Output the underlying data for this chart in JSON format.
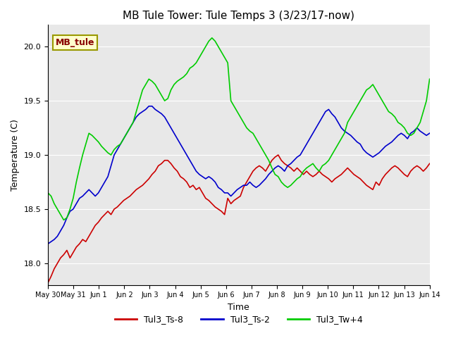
{
  "title": "MB Tule Tower: Tule Temps 3 (3/23/17-now)",
  "xlabel": "Time",
  "ylabel": "Temperature (C)",
  "background_color": "#e8e8e8",
  "ylim": [
    17.8,
    20.2
  ],
  "legend_label": "MB_tule",
  "legend_bg": "#ffffcc",
  "legend_border": "#999900",
  "series": [
    {
      "name": "Tul3_Ts-8",
      "color": "#cc0000"
    },
    {
      "name": "Tul3_Ts-2",
      "color": "#0000cc"
    },
    {
      "name": "Tul3_Tw+4",
      "color": "#00cc00"
    }
  ],
  "xtick_labels": [
    "May 30",
    "May 31",
    "Jun 1",
    "Jun 2",
    "Jun 3",
    "Jun 4",
    "Jun 5",
    "Jun 6",
    "Jun 7",
    "Jun 8",
    "Jun 9",
    "Jun 10",
    "Jun 11",
    "Jun 12",
    "Jun 13",
    "Jun 14"
  ],
  "xtick_positions": [
    0,
    1,
    2,
    3,
    4,
    5,
    6,
    7,
    8,
    9,
    10,
    11,
    12,
    13,
    14,
    15
  ],
  "red_data": [
    17.82,
    17.88,
    17.95,
    18.0,
    18.05,
    18.08,
    18.12,
    18.05,
    18.1,
    18.15,
    18.18,
    18.22,
    18.2,
    18.25,
    18.3,
    18.35,
    18.38,
    18.42,
    18.45,
    18.48,
    18.45,
    18.5,
    18.52,
    18.55,
    18.58,
    18.6,
    18.62,
    18.65,
    18.68,
    18.7,
    18.72,
    18.75,
    18.78,
    18.82,
    18.85,
    18.9,
    18.92,
    18.95,
    18.95,
    18.92,
    18.88,
    18.85,
    18.8,
    18.78,
    18.75,
    18.7,
    18.72,
    18.68,
    18.7,
    18.65,
    18.6,
    18.58,
    18.55,
    18.52,
    18.5,
    18.48,
    18.45,
    18.6,
    18.55,
    18.58,
    18.6,
    18.62,
    18.7,
    18.75,
    18.8,
    18.85,
    18.88,
    18.9,
    18.88,
    18.85,
    18.9,
    18.95,
    18.98,
    19.0,
    18.95,
    18.92,
    18.9,
    18.88,
    18.85,
    18.88,
    18.85,
    18.82,
    18.85,
    18.82,
    18.8,
    18.82,
    18.85,
    18.82,
    18.8,
    18.78,
    18.75,
    18.78,
    18.8,
    18.82,
    18.85,
    18.88,
    18.85,
    18.82,
    18.8,
    18.78,
    18.75,
    18.72,
    18.7,
    18.68,
    18.75,
    18.72,
    18.78,
    18.82,
    18.85,
    18.88,
    18.9,
    18.88,
    18.85,
    18.82,
    18.8,
    18.85,
    18.88,
    18.9,
    18.88,
    18.85,
    18.88,
    18.92
  ],
  "blue_data": [
    18.18,
    18.2,
    18.22,
    18.25,
    18.3,
    18.35,
    18.42,
    18.48,
    18.5,
    18.55,
    18.6,
    18.62,
    18.65,
    18.68,
    18.65,
    18.62,
    18.65,
    18.7,
    18.75,
    18.8,
    18.9,
    19.0,
    19.05,
    19.1,
    19.15,
    19.2,
    19.25,
    19.3,
    19.35,
    19.38,
    19.4,
    19.42,
    19.45,
    19.45,
    19.42,
    19.4,
    19.38,
    19.35,
    19.3,
    19.25,
    19.2,
    19.15,
    19.1,
    19.05,
    19.0,
    18.95,
    18.9,
    18.85,
    18.82,
    18.8,
    18.78,
    18.8,
    18.78,
    18.75,
    18.7,
    18.68,
    18.65,
    18.65,
    18.62,
    18.65,
    18.68,
    18.7,
    18.72,
    18.72,
    18.75,
    18.72,
    18.7,
    18.72,
    18.75,
    18.78,
    18.82,
    18.85,
    18.88,
    18.9,
    18.88,
    18.85,
    18.9,
    18.92,
    18.95,
    18.98,
    19.0,
    19.05,
    19.1,
    19.15,
    19.2,
    19.25,
    19.3,
    19.35,
    19.4,
    19.42,
    19.38,
    19.35,
    19.3,
    19.25,
    19.22,
    19.2,
    19.18,
    19.15,
    19.12,
    19.1,
    19.05,
    19.02,
    19.0,
    18.98,
    19.0,
    19.02,
    19.05,
    19.08,
    19.1,
    19.12,
    19.15,
    19.18,
    19.2,
    19.18,
    19.15,
    19.2,
    19.22,
    19.25,
    19.22,
    19.2,
    19.18,
    19.2
  ],
  "green_data": [
    18.65,
    18.62,
    18.55,
    18.5,
    18.45,
    18.4,
    18.42,
    18.5,
    18.6,
    18.75,
    18.88,
    19.0,
    19.1,
    19.2,
    19.18,
    19.15,
    19.12,
    19.08,
    19.05,
    19.02,
    19.0,
    19.05,
    19.08,
    19.1,
    19.15,
    19.2,
    19.25,
    19.3,
    19.4,
    19.5,
    19.6,
    19.65,
    19.7,
    19.68,
    19.65,
    19.6,
    19.55,
    19.5,
    19.52,
    19.6,
    19.65,
    19.68,
    19.7,
    19.72,
    19.75,
    19.8,
    19.82,
    19.85,
    19.9,
    19.95,
    20.0,
    20.05,
    20.08,
    20.05,
    20.0,
    19.95,
    19.9,
    19.85,
    19.5,
    19.45,
    19.4,
    19.35,
    19.3,
    19.25,
    19.22,
    19.2,
    19.15,
    19.1,
    19.05,
    19.0,
    18.95,
    18.88,
    18.82,
    18.8,
    18.75,
    18.72,
    18.7,
    18.72,
    18.75,
    18.78,
    18.8,
    18.85,
    18.88,
    18.9,
    18.92,
    18.88,
    18.85,
    18.9,
    18.92,
    18.95,
    19.0,
    19.05,
    19.1,
    19.15,
    19.2,
    19.3,
    19.35,
    19.4,
    19.45,
    19.5,
    19.55,
    19.6,
    19.62,
    19.65,
    19.6,
    19.55,
    19.5,
    19.45,
    19.4,
    19.38,
    19.35,
    19.3,
    19.28,
    19.25,
    19.2,
    19.18,
    19.2,
    19.25,
    19.3,
    19.4,
    19.5,
    19.7
  ]
}
